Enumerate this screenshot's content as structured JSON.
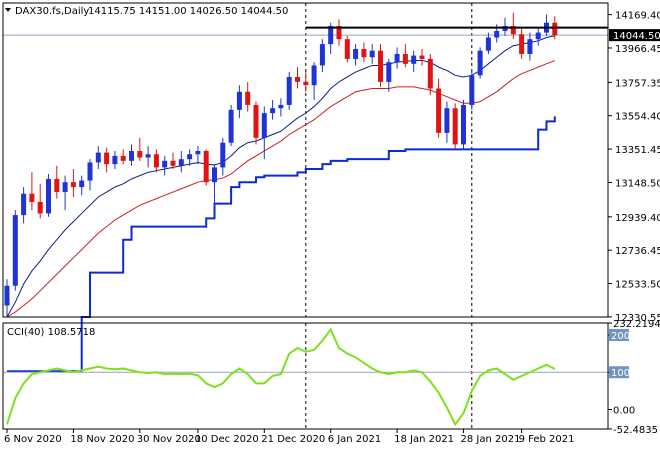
{
  "header": {
    "symbol": "DAX30.fs,Daily",
    "ohlc": "14115.75 14151.00 14026.50 14044.50",
    "indicator_label": "CCI(40) 108.5718"
  },
  "colors": {
    "bull": "#1f33d6",
    "bear": "#e01414",
    "ma_fast": "#0b1f8f",
    "ma_slow": "#cc1f1f",
    "donchian": "#0c2bd6",
    "cci_line": "#7fe01c",
    "grid_line": "#8fa6bf",
    "axis": "#000000",
    "price_tag_bg": "#000000",
    "level_tag_bg": "#6f96c2"
  },
  "chart_data": [
    {
      "type": "candlestick",
      "title": "DAX30.fs,Daily",
      "ylim": [
        12330,
        14240
      ],
      "y_ticks": [
        14169.4,
        13966.45,
        13757.35,
        13554.4,
        13351.45,
        13148.5,
        12939.4,
        12736.45,
        12533.5,
        12330.55
      ],
      "x_ticks": [
        "6 Nov 2020",
        "18 Nov 2020",
        "30 Nov 2020",
        "10 Dec 2020",
        "21 Dec 2020",
        "6 Jan 2021",
        "18 Jan 2021",
        "28 Jan 2021",
        "9 Feb 2021"
      ],
      "current_price": 14044.5,
      "resistance_level": 14090,
      "candles": [
        {
          "o": 12400,
          "h": 12560,
          "l": 12330,
          "c": 12520
        },
        {
          "o": 12520,
          "h": 12980,
          "l": 12490,
          "c": 12950
        },
        {
          "o": 12950,
          "h": 13120,
          "l": 12900,
          "c": 13080
        },
        {
          "o": 13080,
          "h": 13210,
          "l": 12980,
          "c": 13030
        },
        {
          "o": 13030,
          "h": 13140,
          "l": 12930,
          "c": 12960
        },
        {
          "o": 12960,
          "h": 13200,
          "l": 12940,
          "c": 13170
        },
        {
          "o": 13170,
          "h": 13250,
          "l": 13050,
          "c": 13090
        },
        {
          "o": 13090,
          "h": 13190,
          "l": 12980,
          "c": 13150
        },
        {
          "o": 13150,
          "h": 13230,
          "l": 13060,
          "c": 13120
        },
        {
          "o": 13120,
          "h": 13190,
          "l": 13070,
          "c": 13160
        },
        {
          "o": 13160,
          "h": 13290,
          "l": 13100,
          "c": 13270
        },
        {
          "o": 13270,
          "h": 13370,
          "l": 13230,
          "c": 13330
        },
        {
          "o": 13330,
          "h": 13360,
          "l": 13210,
          "c": 13260
        },
        {
          "o": 13260,
          "h": 13340,
          "l": 13230,
          "c": 13310
        },
        {
          "o": 13310,
          "h": 13350,
          "l": 13260,
          "c": 13280
        },
        {
          "o": 13280,
          "h": 13380,
          "l": 13250,
          "c": 13340
        },
        {
          "o": 13340,
          "h": 13420,
          "l": 13280,
          "c": 13300
        },
        {
          "o": 13300,
          "h": 13370,
          "l": 13240,
          "c": 13320
        },
        {
          "o": 13320,
          "h": 13350,
          "l": 13210,
          "c": 13240
        },
        {
          "o": 13240,
          "h": 13310,
          "l": 13190,
          "c": 13280
        },
        {
          "o": 13280,
          "h": 13330,
          "l": 13230,
          "c": 13250
        },
        {
          "o": 13250,
          "h": 13340,
          "l": 13210,
          "c": 13290
        },
        {
          "o": 13290,
          "h": 13350,
          "l": 13250,
          "c": 13320
        },
        {
          "o": 13320,
          "h": 13370,
          "l": 13260,
          "c": 13340
        },
        {
          "o": 13340,
          "h": 13350,
          "l": 13130,
          "c": 13150
        },
        {
          "o": 13150,
          "h": 13260,
          "l": 13010,
          "c": 13240
        },
        {
          "o": 13240,
          "h": 13420,
          "l": 13190,
          "c": 13390
        },
        {
          "o": 13390,
          "h": 13620,
          "l": 13370,
          "c": 13590
        },
        {
          "o": 13590,
          "h": 13740,
          "l": 13540,
          "c": 13700
        },
        {
          "o": 13700,
          "h": 13760,
          "l": 13580,
          "c": 13620
        },
        {
          "o": 13620,
          "h": 13640,
          "l": 13380,
          "c": 13420
        },
        {
          "o": 13420,
          "h": 13610,
          "l": 13290,
          "c": 13570
        },
        {
          "o": 13570,
          "h": 13650,
          "l": 13530,
          "c": 13600
        },
        {
          "o": 13600,
          "h": 13660,
          "l": 13550,
          "c": 13620
        },
        {
          "o": 13620,
          "h": 13820,
          "l": 13590,
          "c": 13790
        },
        {
          "o": 13790,
          "h": 13850,
          "l": 13720,
          "c": 13760
        },
        {
          "o": 13760,
          "h": 13820,
          "l": 13700,
          "c": 13740
        },
        {
          "o": 13740,
          "h": 13880,
          "l": 13650,
          "c": 13860
        },
        {
          "o": 13860,
          "h": 14020,
          "l": 13820,
          "c": 13990
        },
        {
          "o": 13990,
          "h": 14120,
          "l": 13930,
          "c": 14100
        },
        {
          "o": 14100,
          "h": 14140,
          "l": 13980,
          "c": 14020
        },
        {
          "o": 14020,
          "h": 14040,
          "l": 13880,
          "c": 13900
        },
        {
          "o": 13900,
          "h": 13990,
          "l": 13860,
          "c": 13960
        },
        {
          "o": 13960,
          "h": 14000,
          "l": 13880,
          "c": 13910
        },
        {
          "o": 13910,
          "h": 13990,
          "l": 13870,
          "c": 13950
        },
        {
          "o": 13950,
          "h": 13990,
          "l": 13730,
          "c": 13760
        },
        {
          "o": 13760,
          "h": 13900,
          "l": 13700,
          "c": 13880
        },
        {
          "o": 13880,
          "h": 13970,
          "l": 13840,
          "c": 13930
        },
        {
          "o": 13930,
          "h": 13990,
          "l": 13850,
          "c": 13870
        },
        {
          "o": 13870,
          "h": 13950,
          "l": 13820,
          "c": 13920
        },
        {
          "o": 13920,
          "h": 13960,
          "l": 13860,
          "c": 13900
        },
        {
          "o": 13900,
          "h": 13930,
          "l": 13680,
          "c": 13720
        },
        {
          "o": 13720,
          "h": 13780,
          "l": 13420,
          "c": 13450
        },
        {
          "o": 13450,
          "h": 13640,
          "l": 13390,
          "c": 13600
        },
        {
          "o": 13600,
          "h": 13630,
          "l": 13350,
          "c": 13380
        },
        {
          "o": 13380,
          "h": 13650,
          "l": 13350,
          "c": 13620
        },
        {
          "o": 13620,
          "h": 13830,
          "l": 13590,
          "c": 13800
        },
        {
          "o": 13800,
          "h": 13970,
          "l": 13780,
          "c": 13950
        },
        {
          "o": 13950,
          "h": 14060,
          "l": 13930,
          "c": 14030
        },
        {
          "o": 14030,
          "h": 14110,
          "l": 14000,
          "c": 14070
        },
        {
          "o": 14070,
          "h": 14150,
          "l": 14040,
          "c": 14100
        },
        {
          "o": 14100,
          "h": 14180,
          "l": 14020,
          "c": 14050
        },
        {
          "o": 14050,
          "h": 14090,
          "l": 13900,
          "c": 13930
        },
        {
          "o": 13930,
          "h": 14060,
          "l": 13890,
          "c": 14020
        },
        {
          "o": 14020,
          "h": 14090,
          "l": 13980,
          "c": 14060
        },
        {
          "o": 14060,
          "h": 14170,
          "l": 14040,
          "c": 14120
        },
        {
          "o": 14120,
          "h": 14160,
          "l": 14020,
          "c": 14044.5
        }
      ],
      "ma_fast": [
        12330,
        12420,
        12530,
        12610,
        12670,
        12740,
        12800,
        12860,
        12910,
        12960,
        13010,
        13060,
        13090,
        13120,
        13140,
        13170,
        13190,
        13210,
        13220,
        13230,
        13240,
        13250,
        13260,
        13270,
        13260,
        13255,
        13270,
        13310,
        13360,
        13390,
        13400,
        13420,
        13440,
        13460,
        13500,
        13540,
        13570,
        13610,
        13660,
        13720,
        13760,
        13790,
        13820,
        13840,
        13860,
        13860,
        13870,
        13880,
        13885,
        13890,
        13890,
        13880,
        13850,
        13830,
        13800,
        13790,
        13800,
        13830,
        13870,
        13910,
        13950,
        13980,
        13990,
        14000,
        14010,
        14030,
        14040
      ],
      "ma_slow": [
        12330,
        12360,
        12400,
        12440,
        12490,
        12540,
        12590,
        12640,
        12690,
        12740,
        12790,
        12840,
        12880,
        12920,
        12950,
        12980,
        13010,
        13030,
        13050,
        13070,
        13090,
        13110,
        13130,
        13150,
        13160,
        13165,
        13175,
        13200,
        13240,
        13280,
        13310,
        13340,
        13370,
        13400,
        13440,
        13470,
        13500,
        13530,
        13570,
        13610,
        13640,
        13670,
        13700,
        13710,
        13720,
        13720,
        13720,
        13730,
        13730,
        13730,
        13720,
        13710,
        13690,
        13670,
        13650,
        13630,
        13630,
        13640,
        13670,
        13700,
        13740,
        13780,
        13810,
        13830,
        13850,
        13870,
        13890
      ],
      "donchian_lower": [
        12000,
        12000,
        12000,
        12000,
        12000,
        12000,
        12000,
        12000,
        12000,
        12330,
        12600,
        12600,
        12600,
        12600,
        12800,
        12880,
        12880,
        12880,
        12880,
        12880,
        12880,
        12880,
        12880,
        12880,
        12930,
        13020,
        13020,
        13120,
        13150,
        13150,
        13180,
        13190,
        13190,
        13190,
        13190,
        13210,
        13230,
        13230,
        13260,
        13280,
        13280,
        13290,
        13290,
        13290,
        13290,
        13290,
        13340,
        13340,
        13350,
        13350,
        13350,
        13350,
        13350,
        13350,
        13350,
        13350,
        13350,
        13350,
        13350,
        13350,
        13350,
        13350,
        13350,
        13350,
        13470,
        13520,
        13550
      ]
    },
    {
      "type": "line",
      "title": "CCI(40) 108.5718",
      "ylim": [
        -52.4835,
        232.2194
      ],
      "y_ticks": [
        232.2194,
        200,
        100,
        0.0,
        -52.4835
      ],
      "series": [
        {
          "name": "CCI(40)",
          "values": [
            -40,
            30,
            70,
            95,
            100,
            105,
            110,
            105,
            100,
            105,
            110,
            115,
            110,
            108,
            110,
            105,
            100,
            98,
            100,
            95,
            96,
            95,
            96,
            92,
            70,
            60,
            70,
            95,
            110,
            95,
            70,
            70,
            90,
            95,
            150,
            165,
            155,
            160,
            185,
            215,
            165,
            150,
            140,
            125,
            110,
            100,
            95,
            100,
            100,
            105,
            100,
            75,
            45,
            5,
            -40,
            -10,
            50,
            90,
            105,
            110,
            95,
            80,
            90,
            100,
            110,
            120,
            108.5718
          ]
        }
      ]
    }
  ]
}
